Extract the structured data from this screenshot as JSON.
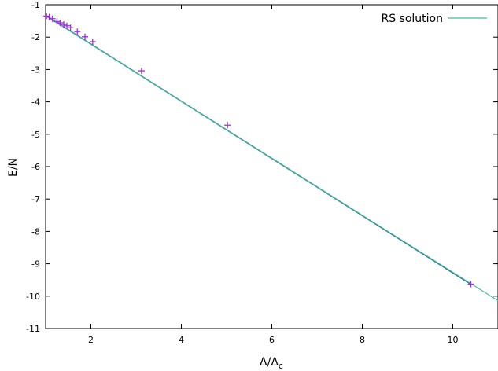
{
  "chart_data": {
    "type": "line",
    "title": "",
    "xlabel": "Δ/Δ",
    "xlabel_sub": "c",
    "ylabel": "E/N",
    "xlim": [
      1,
      11
    ],
    "ylim": [
      -11,
      -1
    ],
    "xticks": [
      2,
      4,
      6,
      8,
      10
    ],
    "yticks": [
      -1,
      -2,
      -3,
      -4,
      -5,
      -6,
      -7,
      -8,
      -9,
      -10,
      -11
    ],
    "grid": false,
    "legend_position": "top-right",
    "series": [
      {
        "name": "RS solution",
        "style": "line",
        "color": "#3fbf9f",
        "x": [
          1.0,
          11.0
        ],
        "y": [
          -1.34,
          -10.14
        ]
      },
      {
        "name": "",
        "style": "points",
        "marker": "+",
        "color": "#9b30d9",
        "x": [
          1.02,
          1.08,
          1.15,
          1.25,
          1.32,
          1.4,
          1.47,
          1.55,
          1.7,
          1.87,
          2.04,
          3.12,
          5.02,
          10.4
        ],
        "y": [
          -1.35,
          -1.38,
          -1.43,
          -1.52,
          -1.56,
          -1.61,
          -1.65,
          -1.71,
          -1.83,
          -1.99,
          -2.14,
          -3.04,
          -4.72,
          -9.63
        ]
      }
    ]
  }
}
